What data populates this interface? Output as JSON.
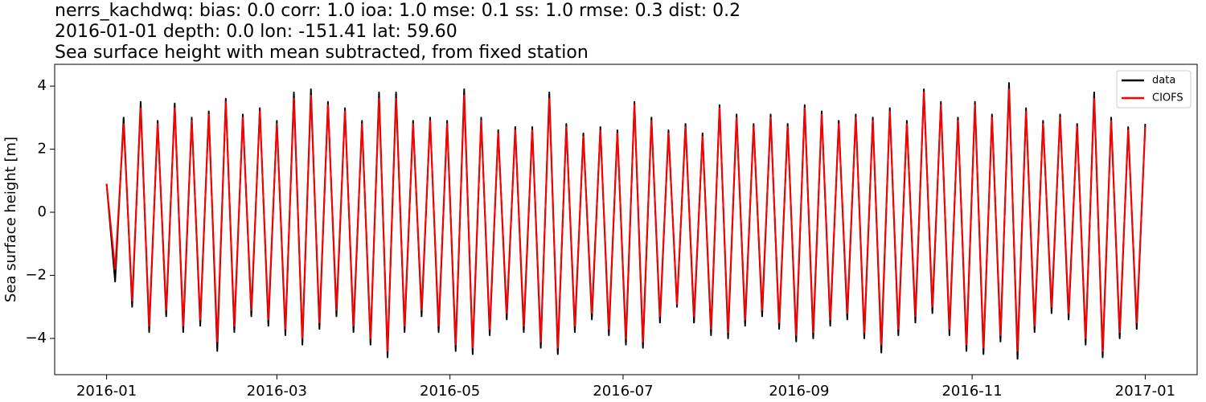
{
  "chart_data": {
    "type": "line",
    "title_lines": [
      "nerrs_kachdwq: bias: 0.0  corr: 1.0  ioa: 1.0  mse: 0.1  ss: 1.0  rmse: 0.3  dist: 0.2",
      "2016-01-01 depth: 0.0 lon: -151.41 lat: 59.60",
      "Sea surface height with mean subtracted, from fixed station"
    ],
    "y_label": "Sea surface height [m]",
    "xlim": [
      -18.3,
      384.3
    ],
    "xticks": [
      {
        "value": 0,
        "label": "2016-01"
      },
      {
        "value": 60,
        "label": "2016-03"
      },
      {
        "value": 121,
        "label": "2016-05"
      },
      {
        "value": 182,
        "label": "2016-07"
      },
      {
        "value": 244,
        "label": "2016-09"
      },
      {
        "value": 305,
        "label": "2016-11"
      },
      {
        "value": 366,
        "label": "2017-01"
      }
    ],
    "ylim": [
      -5.15,
      4.69
    ],
    "yticks": [
      {
        "value": -4,
        "label": "−4"
      },
      {
        "value": -2,
        "label": "−2"
      },
      0,
      2,
      4
    ],
    "legend": "upper right",
    "x": [
      0,
      3,
      6,
      9,
      12,
      15,
      18,
      21,
      24,
      27,
      30,
      33,
      36,
      39,
      42,
      45,
      48,
      51,
      54,
      57,
      60,
      63,
      66,
      69,
      72,
      75,
      78,
      81,
      84,
      87,
      90,
      93,
      96,
      99,
      102,
      105,
      108,
      111,
      114,
      117,
      120,
      123,
      126,
      129,
      132,
      135,
      138,
      141,
      144,
      147,
      150,
      153,
      156,
      159,
      162,
      165,
      168,
      171,
      174,
      177,
      180,
      183,
      186,
      189,
      192,
      195,
      198,
      201,
      204,
      207,
      210,
      213,
      216,
      219,
      222,
      225,
      228,
      231,
      234,
      237,
      240,
      243,
      246,
      249,
      252,
      255,
      258,
      261,
      264,
      267,
      270,
      273,
      276,
      279,
      282,
      285,
      288,
      291,
      294,
      297,
      300,
      303,
      306,
      309,
      312,
      315,
      318,
      321,
      324,
      327,
      330,
      333,
      336,
      339,
      342,
      345,
      348,
      351,
      354,
      357,
      360,
      363,
      366
    ],
    "series": [
      {
        "name": "data",
        "color": "#000000",
        "values": [
          0.9,
          -2.2,
          3.0,
          -3.0,
          3.5,
          -3.8,
          2.9,
          -3.3,
          3.45,
          -3.8,
          3.0,
          -3.6,
          3.2,
          -4.4,
          3.6,
          -3.8,
          3.1,
          -3.3,
          3.3,
          -3.6,
          2.9,
          -3.9,
          3.8,
          -4.2,
          3.9,
          -3.7,
          3.5,
          -3.3,
          3.3,
          -3.8,
          2.9,
          -4.2,
          3.8,
          -4.6,
          3.8,
          -3.8,
          2.9,
          -3.3,
          3.0,
          -3.8,
          2.9,
          -4.4,
          3.9,
          -4.5,
          3.0,
          -3.9,
          2.6,
          -3.4,
          2.7,
          -3.8,
          2.7,
          -4.3,
          3.8,
          -4.5,
          2.8,
          -3.8,
          2.5,
          -3.4,
          2.7,
          -3.9,
          2.6,
          -4.2,
          3.5,
          -4.3,
          3.0,
          -3.5,
          2.6,
          -3.0,
          2.8,
          -3.5,
          2.5,
          -3.9,
          3.4,
          -4.0,
          3.1,
          -3.6,
          2.8,
          -3.3,
          3.1,
          -3.7,
          2.8,
          -4.1,
          3.4,
          -4.0,
          3.2,
          -3.6,
          2.9,
          -3.4,
          3.1,
          -4.0,
          3.0,
          -4.45,
          3.3,
          -3.9,
          2.9,
          -3.5,
          3.9,
          -3.2,
          3.5,
          -3.9,
          3.0,
          -4.4,
          3.5,
          -4.5,
          3.1,
          -4.1,
          4.1,
          -4.65,
          3.3,
          -3.8,
          2.9,
          -3.2,
          3.1,
          -3.4,
          2.8,
          -4.2,
          3.8,
          -4.6,
          3.0,
          -4.0,
          2.7,
          -3.7,
          2.8
        ]
      },
      {
        "name": "CIOFS",
        "color": "#ff0000",
        "values": [
          0.9,
          -1.8,
          2.8,
          -2.8,
          3.3,
          -3.6,
          2.8,
          -3.1,
          3.3,
          -3.6,
          2.9,
          -3.4,
          3.1,
          -4.1,
          3.5,
          -3.6,
          3.0,
          -3.1,
          3.2,
          -3.4,
          2.8,
          -3.7,
          3.6,
          -4.0,
          3.7,
          -3.5,
          3.4,
          -3.1,
          3.2,
          -3.6,
          2.8,
          -4.0,
          3.6,
          -4.4,
          3.6,
          -3.6,
          2.8,
          -3.1,
          2.9,
          -3.6,
          2.8,
          -4.2,
          3.7,
          -4.3,
          2.9,
          -3.7,
          2.5,
          -3.2,
          2.6,
          -3.6,
          2.6,
          -4.1,
          3.6,
          -4.3,
          2.7,
          -3.6,
          2.4,
          -3.2,
          2.6,
          -3.7,
          2.5,
          -4.0,
          3.4,
          -4.1,
          2.9,
          -3.3,
          2.5,
          -2.9,
          2.7,
          -3.3,
          2.4,
          -3.7,
          3.3,
          -3.8,
          3.0,
          -3.4,
          2.7,
          -3.1,
          3.0,
          -3.5,
          2.7,
          -3.9,
          3.3,
          -3.8,
          3.1,
          -3.4,
          2.8,
          -3.2,
          3.0,
          -3.8,
          2.9,
          -4.2,
          3.2,
          -3.7,
          2.8,
          -3.3,
          3.8,
          -3.0,
          3.4,
          -3.7,
          2.9,
          -4.2,
          3.4,
          -4.3,
          3.0,
          -3.9,
          3.9,
          -4.4,
          3.2,
          -3.6,
          2.8,
          -3.0,
          3.0,
          -3.2,
          2.7,
          -4.0,
          3.6,
          -4.4,
          2.9,
          -3.8,
          2.6,
          -3.5,
          2.7
        ]
      }
    ]
  }
}
